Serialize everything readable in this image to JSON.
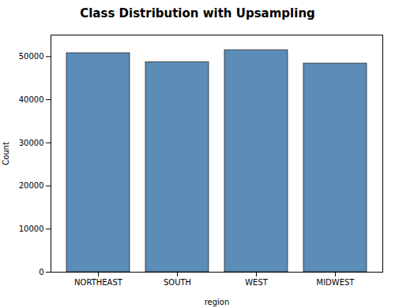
{
  "chart_data": {
    "type": "bar",
    "title": "Class Distribution with Upsampling",
    "xlabel": "region",
    "ylabel": "Count",
    "categories": [
      "NORTHEAST",
      "SOUTH",
      "WEST",
      "MIDWEST"
    ],
    "values": [
      50800,
      48700,
      51500,
      48400
    ],
    "color": "#5b8db8",
    "ylim": [
      0,
      55000
    ],
    "yticks": [
      0,
      10000,
      20000,
      30000,
      40000,
      50000
    ],
    "grid": false
  }
}
